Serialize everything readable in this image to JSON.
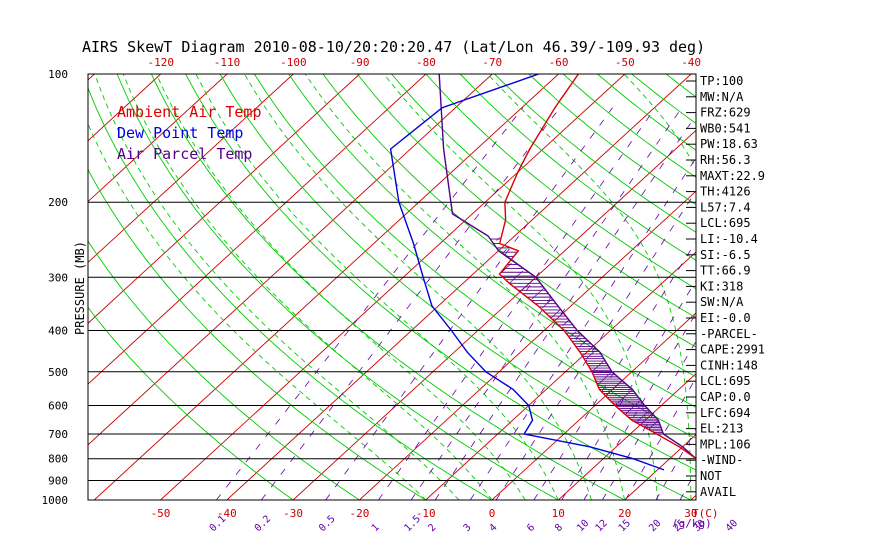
{
  "title": "AIRS SkewT Diagram 2010-08-10/20:20:20.47 (Lat/Lon 46.39/-109.93 deg)",
  "legend": [
    {
      "label": "Ambient Air Temp",
      "color": "#dd0000"
    },
    {
      "label": "Dew Point Temp",
      "color": "#0000dd"
    },
    {
      "label": "Air Parcel Temp",
      "color": "#550088"
    }
  ],
  "colors": {
    "frame": "#000000",
    "isotherm": "#cc0000",
    "dry_adiabat": "#00cc00",
    "moist_adiabat": "#00cc00",
    "mixing_ratio": "#6600aa",
    "temp": "#dd0000",
    "dewpoint": "#0000dd",
    "parcel": "#550088",
    "hatch": "#550088",
    "axis_text": "#cc0000",
    "mixing_text": "#6600aa"
  },
  "chart_data": {
    "type": "line",
    "ylabel": "PRESSURE (MB)",
    "xlabel_bottom": "T(C)",
    "mixing_unit_label": "(g/kg)",
    "yscale": "log",
    "pressure_ticks": [
      100,
      200,
      300,
      400,
      500,
      600,
      700,
      800,
      900,
      1000
    ],
    "pressure_range": [
      100,
      1000
    ],
    "bottom_temp_ticks": [
      -50,
      -40,
      -30,
      -20,
      -10,
      0,
      10,
      20,
      30
    ],
    "top_temp_ticks": [
      -120,
      -110,
      -100,
      -90,
      -80,
      -70,
      -60,
      -50,
      -40
    ],
    "mixing_ratio_labels": [
      "0.1",
      "0.2",
      "0.5",
      "1",
      "1.5",
      "2",
      "3",
      "4",
      "6",
      "8",
      "10",
      "12",
      "15",
      "20",
      "25",
      "30",
      "40"
    ],
    "mixing_ratio_values": [
      0.1,
      0.2,
      0.5,
      1,
      1.5,
      2,
      3,
      4,
      6,
      8,
      10,
      12,
      15,
      20,
      25,
      30,
      40
    ],
    "series": [
      {
        "name": "Ambient Air Temp",
        "points": [
          [
            850,
            28.5
          ],
          [
            800,
            24
          ],
          [
            750,
            19.5
          ],
          [
            700,
            14
          ],
          [
            650,
            8
          ],
          [
            600,
            3
          ],
          [
            550,
            -2
          ],
          [
            500,
            -6
          ],
          [
            450,
            -11
          ],
          [
            400,
            -17
          ],
          [
            350,
            -25
          ],
          [
            310,
            -33
          ],
          [
            295,
            -36
          ],
          [
            260,
            -37
          ],
          [
            250,
            -41
          ],
          [
            220,
            -44
          ],
          [
            200,
            -47
          ],
          [
            170,
            -50
          ],
          [
            150,
            -52
          ],
          [
            120,
            -55
          ],
          [
            100,
            -57
          ]
        ]
      },
      {
        "name": "Dew Point Temp",
        "points": [
          [
            850,
            21
          ],
          [
            800,
            14.5
          ],
          [
            750,
            6
          ],
          [
            700,
            -6
          ],
          [
            650,
            -7
          ],
          [
            600,
            -10
          ],
          [
            550,
            -15
          ],
          [
            500,
            -22
          ],
          [
            450,
            -28
          ],
          [
            400,
            -34
          ],
          [
            350,
            -41
          ],
          [
            300,
            -47
          ],
          [
            250,
            -54
          ],
          [
            200,
            -63
          ],
          [
            150,
            -73
          ],
          [
            120,
            -72
          ],
          [
            100,
            -63
          ]
        ]
      },
      {
        "name": "Air Parcel Temp",
        "points": [
          [
            850,
            29.5
          ],
          [
            800,
            24
          ],
          [
            750,
            20
          ],
          [
            700,
            15
          ],
          [
            650,
            12
          ],
          [
            600,
            7.5
          ],
          [
            550,
            3
          ],
          [
            500,
            -3
          ],
          [
            450,
            -8
          ],
          [
            400,
            -15
          ],
          [
            350,
            -22
          ],
          [
            300,
            -30
          ],
          [
            260,
            -40
          ],
          [
            240,
            -44
          ],
          [
            213,
            -53
          ],
          [
            150,
            -65
          ],
          [
            100,
            -78
          ]
        ]
      }
    ],
    "cape_region": {
      "from_mb": 694,
      "to_mb": 240
    },
    "grid": true
  },
  "indices": [
    "TP:100",
    "MW:N/A",
    "FRZ:629",
    "WB0:541",
    "PW:18.63",
    "RH:56.3",
    "MAXT:22.9",
    "TH:4126",
    "L57:7.4",
    "LCL:695",
    "LI:-10.4",
    "SI:-6.5",
    "TT:66.9",
    "KI:318",
    "SW:N/A",
    "EI:-0.0",
    "-PARCEL-",
    "CAPE:2991",
    "CINH:148",
    "LCL:695",
    "CAP:0.0",
    "LFC:694",
    "EL:213",
    "MPL:106",
    "-WIND-",
    "NOT",
    "AVAIL"
  ]
}
